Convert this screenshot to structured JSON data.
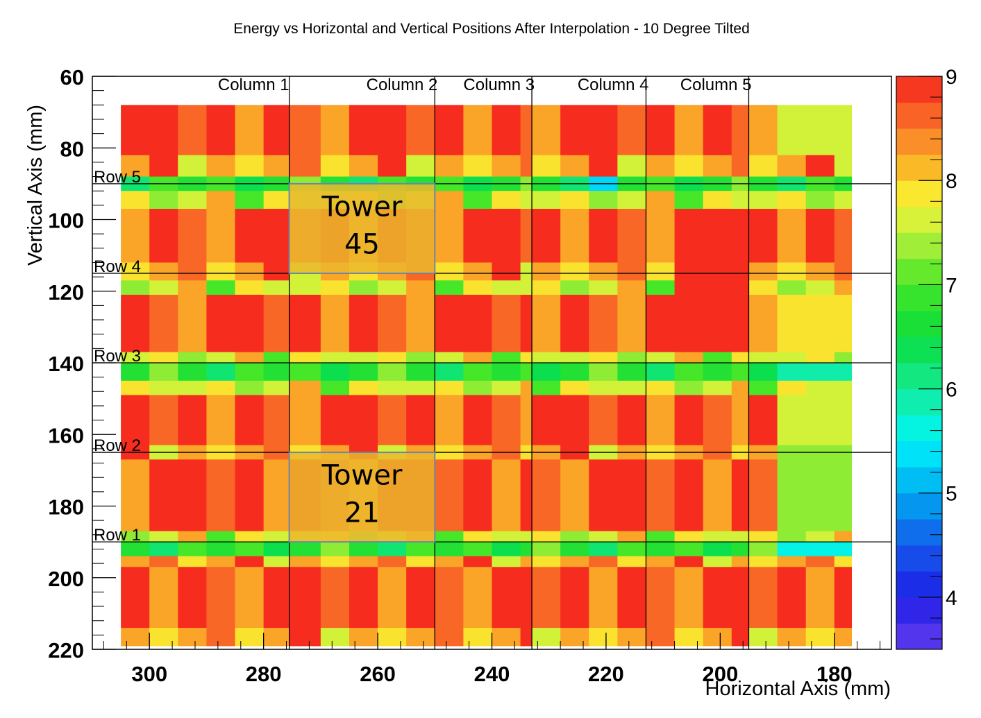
{
  "chart_data": {
    "type": "heatmap",
    "title": "Energy vs Horizontal and Vertical Positions After Interpolation - 10 Degree Tilted",
    "xlabel": "Horizontal Axis (mm)",
    "ylabel": "Vertical Axis (mm)",
    "xlim": [
      310,
      170
    ],
    "ylim": [
      60,
      220
    ],
    "x_reversed": true,
    "y_reversed": true,
    "x_ticks": [
      300,
      280,
      260,
      240,
      220,
      200,
      180
    ],
    "y_ticks": [
      60,
      80,
      100,
      120,
      140,
      160,
      180,
      200,
      220
    ],
    "colorbar": {
      "range": [
        3.5,
        9
      ],
      "ticks": [
        4,
        5,
        6,
        7,
        8,
        9
      ]
    },
    "column_dividers": [
      275.5,
      250,
      233,
      213,
      195
    ],
    "column_labels": [
      "Column 1",
      "Column 2",
      "Column 3",
      "Column 4",
      "Column 5"
    ],
    "column_label_x": [
      288,
      262,
      245,
      225,
      207
    ],
    "row_dividers": [
      190,
      165,
      140,
      115,
      90
    ],
    "row_labels": [
      "Row 1",
      "Row 2",
      "Row 3",
      "Row 4",
      "Row 5"
    ],
    "towers": [
      {
        "label": "Tower",
        "number": "45",
        "x0": 275.5,
        "x1": 250,
        "y0": 90,
        "y1": 115
      },
      {
        "label": "Tower",
        "number": "21",
        "x0": 275.5,
        "x1": 250,
        "y0": 165,
        "y1": 190
      }
    ],
    "x_edges": [
      305,
      300,
      295,
      290,
      285,
      280,
      275.5,
      270,
      265,
      260,
      255,
      250,
      245,
      240,
      235,
      233,
      228,
      223,
      218,
      213,
      208,
      203,
      198,
      195,
      190,
      185,
      180,
      177
    ],
    "bands": [
      {
        "y0": 68,
        "y1": 82,
        "kind": "hi"
      },
      {
        "y0": 82,
        "y1": 88,
        "kind": "mid"
      },
      {
        "y0": 88,
        "y1": 92,
        "kind": "low"
      },
      {
        "y0": 92,
        "y1": 97,
        "kind": "tr"
      },
      {
        "y0": 97,
        "y1": 112,
        "kind": "hi"
      },
      {
        "y0": 112,
        "y1": 117,
        "kind": "mid"
      },
      {
        "y0": 117,
        "y1": 121,
        "kind": "tr"
      },
      {
        "y0": 121,
        "y1": 137,
        "kind": "hi"
      },
      {
        "y0": 137,
        "y1": 140,
        "kind": "tr"
      },
      {
        "y0": 140,
        "y1": 145,
        "kind": "low"
      },
      {
        "y0": 145,
        "y1": 149,
        "kind": "tr"
      },
      {
        "y0": 149,
        "y1": 163,
        "kind": "hi"
      },
      {
        "y0": 163,
        "y1": 167,
        "kind": "mid"
      },
      {
        "y0": 167,
        "y1": 187,
        "kind": "hi"
      },
      {
        "y0": 187,
        "y1": 190,
        "kind": "tr"
      },
      {
        "y0": 190,
        "y1": 194,
        "kind": "low"
      },
      {
        "y0": 194,
        "y1": 197,
        "kind": "mid"
      },
      {
        "y0": 197,
        "y1": 214,
        "kind": "hi"
      },
      {
        "y0": 214,
        "y1": 219,
        "kind": "mid"
      }
    ],
    "palette": {
      "hi": [
        8.95,
        8.95,
        8.6,
        8.95,
        8.25,
        8.95,
        8.6,
        8.25
      ],
      "mid": [
        8.25,
        8.6,
        7.9,
        8.25,
        8.95,
        7.6,
        8.25,
        7.9
      ],
      "tr": [
        7.6,
        7.9,
        7.3,
        7.6,
        8.25,
        7.0,
        7.9,
        7.6
      ],
      "low": [
        6.7,
        7.0,
        6.4,
        6.7,
        7.3,
        6.7,
        6.2,
        7.0
      ]
    },
    "overrides": [
      {
        "x": [
          190,
          177
        ],
        "y": [
          68,
          82
        ],
        "v": 7.6
      },
      {
        "x": [
          190,
          177
        ],
        "y": [
          121,
          137
        ],
        "v": 7.9
      },
      {
        "x": [
          190,
          177
        ],
        "y": [
          149,
          163
        ],
        "v": 7.6
      },
      {
        "x": [
          190,
          177
        ],
        "y": [
          163,
          187
        ],
        "v": 7.3
      },
      {
        "x": [
          190,
          177
        ],
        "y": [
          190,
          194
        ],
        "v": 5.6
      },
      {
        "x": [
          190,
          177
        ],
        "y": [
          140,
          145
        ],
        "v": 5.9
      },
      {
        "x": [
          223,
          218
        ],
        "y": [
          88,
          92
        ],
        "v": 5.3
      },
      {
        "x": [
          208,
          195
        ],
        "y": [
          97,
          137
        ],
        "v": 8.95
      }
    ]
  }
}
